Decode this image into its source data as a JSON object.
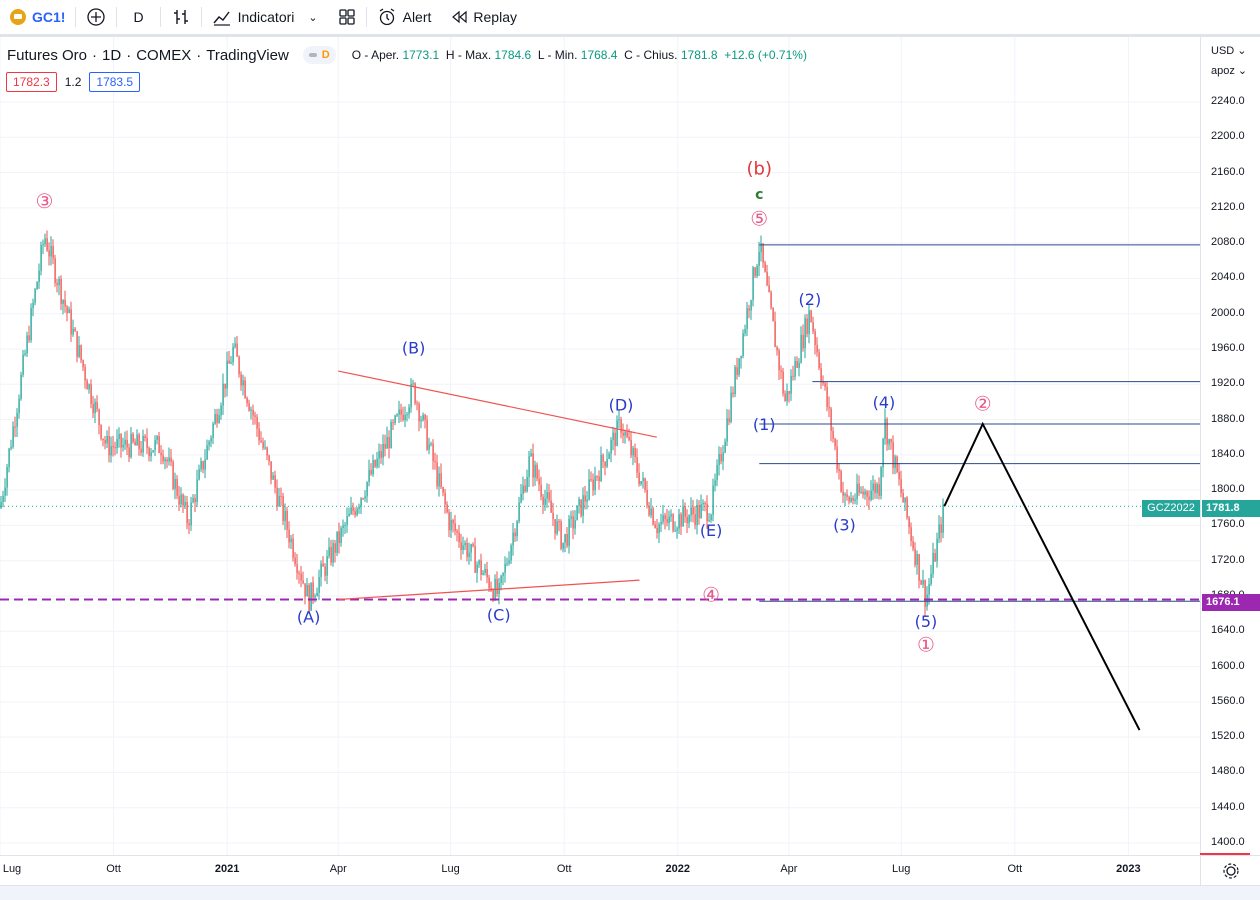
{
  "toolbar": {
    "symbol": "GC1!",
    "interval": "D",
    "indicators_label": "Indicatori",
    "alert_label": "Alert",
    "replay_label": "Replay"
  },
  "legend": {
    "name": "Futures Oro",
    "interval": "1D",
    "exchange": "COMEX",
    "source": "TradingView",
    "pill_letter": "D",
    "o_label": "O - Aper.",
    "o_value": "1773.1",
    "h_label": "H - Max.",
    "h_value": "1784.6",
    "l_label": "L - Min.",
    "l_value": "1768.4",
    "c_label": "C - Chius.",
    "c_value": "1781.8",
    "change": "+12.6 (+0.71%)"
  },
  "trade_boxes": {
    "sell": "1782.3",
    "spread": "1.2",
    "buy": "1783.5"
  },
  "price_axis": {
    "currency": "USD",
    "scale_mode": "apoz",
    "ticks": [
      "2240.0",
      "2200.0",
      "2160.0",
      "2120.0",
      "2080.0",
      "2040.0",
      "2000.0",
      "1960.0",
      "1920.0",
      "1880.0",
      "1840.0",
      "1800.0",
      "1760.0",
      "1720.0",
      "1680.0",
      "1640.0",
      "1600.0",
      "1560.0",
      "1520.0",
      "1480.0",
      "1440.0",
      "1400.0"
    ]
  },
  "price_tags": {
    "symbol_tag": "GCZ2022",
    "last_price": "1781.8",
    "hline_price": "1676.1"
  },
  "time_axis": {
    "labels": [
      {
        "text": "Lug",
        "bold": false
      },
      {
        "text": "Ott",
        "bold": false
      },
      {
        "text": "2021",
        "bold": true
      },
      {
        "text": "Apr",
        "bold": false
      },
      {
        "text": "Lug",
        "bold": false
      },
      {
        "text": "Ott",
        "bold": false
      },
      {
        "text": "2022",
        "bold": true
      },
      {
        "text": "Apr",
        "bold": false
      },
      {
        "text": "Lug",
        "bold": false
      },
      {
        "text": "Ott",
        "bold": false
      },
      {
        "text": "2023",
        "bold": true
      }
    ]
  },
  "colors": {
    "up": "#26a69a",
    "down": "#ef5350",
    "wave_blue": "#2a3bcc",
    "wave_red": "#e03a3a",
    "wave_pink": "#e85a8a",
    "wave_green": "#2e7d32",
    "trendline": "#ef5350",
    "hline": "#2c4a8c",
    "dashed": "#9c27b0",
    "projection": "#000000"
  },
  "chart_data": {
    "type": "candlestick",
    "title": "Futures Oro · 1D · COMEX",
    "x_range": [
      "2020-07-01",
      "2023-02-28"
    ],
    "ylim": [
      1380,
      2260
    ],
    "last_close": 1781.8,
    "anchors": [
      {
        "date": "2020-07-01",
        "price": 1780
      },
      {
        "date": "2020-08-06",
        "price": 2089
      },
      {
        "date": "2020-09-25",
        "price": 1850
      },
      {
        "date": "2020-11-09",
        "price": 1850
      },
      {
        "date": "2020-11-30",
        "price": 1765
      },
      {
        "date": "2021-01-06",
        "price": 1960
      },
      {
        "date": "2021-03-08",
        "price": 1676
      },
      {
        "date": "2021-06-01",
        "price": 1915
      },
      {
        "date": "2021-06-30",
        "price": 1763
      },
      {
        "date": "2021-08-09",
        "price": 1680
      },
      {
        "date": "2021-09-03",
        "price": 1835
      },
      {
        "date": "2021-09-30",
        "price": 1740
      },
      {
        "date": "2021-11-16",
        "price": 1875
      },
      {
        "date": "2021-12-15",
        "price": 1760
      },
      {
        "date": "2022-01-28",
        "price": 1780
      },
      {
        "date": "2022-03-08",
        "price": 2078
      },
      {
        "date": "2022-03-29",
        "price": 1900
      },
      {
        "date": "2022-04-18",
        "price": 2003
      },
      {
        "date": "2022-05-16",
        "price": 1787
      },
      {
        "date": "2022-06-13",
        "price": 1805
      },
      {
        "date": "2022-06-17",
        "price": 1880
      },
      {
        "date": "2022-07-21",
        "price": 1676
      },
      {
        "date": "2022-08-05",
        "price": 1782
      }
    ],
    "wave_labels": [
      {
        "text": "③",
        "date": "2020-08-06",
        "price": 2120,
        "color": "wave_pink"
      },
      {
        "text": "(A)",
        "date": "2021-03-08",
        "price": 1650,
        "color": "wave_blue"
      },
      {
        "text": "(B)",
        "date": "2021-06-01",
        "price": 1955,
        "color": "wave_blue"
      },
      {
        "text": "(C)",
        "date": "2021-08-09",
        "price": 1652,
        "color": "wave_blue"
      },
      {
        "text": "(D)",
        "date": "2021-11-16",
        "price": 1890,
        "color": "wave_blue"
      },
      {
        "text": "(E)",
        "date": "2022-01-28",
        "price": 1748,
        "color": "wave_blue"
      },
      {
        "text": "④",
        "date": "2022-01-28",
        "price": 1674,
        "color": "wave_pink"
      },
      {
        "text": "(b)",
        "date": "2022-03-08",
        "price": 2158,
        "color": "wave_red"
      },
      {
        "text": "c",
        "date": "2022-03-08",
        "price": 2130,
        "color": "wave_green"
      },
      {
        "text": "⑤",
        "date": "2022-03-08",
        "price": 2100,
        "color": "wave_pink"
      },
      {
        "text": "(1)",
        "date": "2022-03-12",
        "price": 1868,
        "color": "wave_blue"
      },
      {
        "text": "(2)",
        "date": "2022-04-18",
        "price": 2010,
        "color": "wave_blue"
      },
      {
        "text": "(3)",
        "date": "2022-05-16",
        "price": 1754,
        "color": "wave_blue"
      },
      {
        "text": "(4)",
        "date": "2022-06-17",
        "price": 1893,
        "color": "wave_blue"
      },
      {
        "text": "(5)",
        "date": "2022-07-21",
        "price": 1645,
        "color": "wave_blue"
      },
      {
        "text": "①",
        "date": "2022-07-21",
        "price": 1617,
        "color": "wave_pink"
      },
      {
        "text": "②",
        "date": "2022-09-05",
        "price": 1890,
        "color": "wave_pink"
      }
    ],
    "trendlines": [
      {
        "from": {
          "date": "2021-04-01",
          "price": 1935
        },
        "to": {
          "date": "2021-12-15",
          "price": 1860
        },
        "color": "trendline"
      },
      {
        "from": {
          "date": "2021-04-01",
          "price": 1676
        },
        "to": {
          "date": "2021-12-01",
          "price": 1698
        },
        "color": "trendline"
      }
    ],
    "horizontal_lines": [
      {
        "price": 2078,
        "from": "2022-03-08",
        "color": "hline"
      },
      {
        "price": 1923,
        "from": "2022-04-20",
        "color": "hline"
      },
      {
        "price": 1875,
        "from": "2022-03-08",
        "color": "hline"
      },
      {
        "price": 1830,
        "from": "2022-03-08",
        "color": "hline"
      },
      {
        "price": 1674,
        "from": "2022-03-08",
        "color": "hline"
      }
    ],
    "dashed_line": {
      "price": 1676.1,
      "color": "dashed"
    },
    "last_price_line": {
      "price": 1781.8
    },
    "projection": [
      {
        "date": "2022-08-05",
        "price": 1782
      },
      {
        "date": "2022-09-05",
        "price": 1875
      },
      {
        "date": "2023-01-10",
        "price": 1528
      }
    ]
  }
}
